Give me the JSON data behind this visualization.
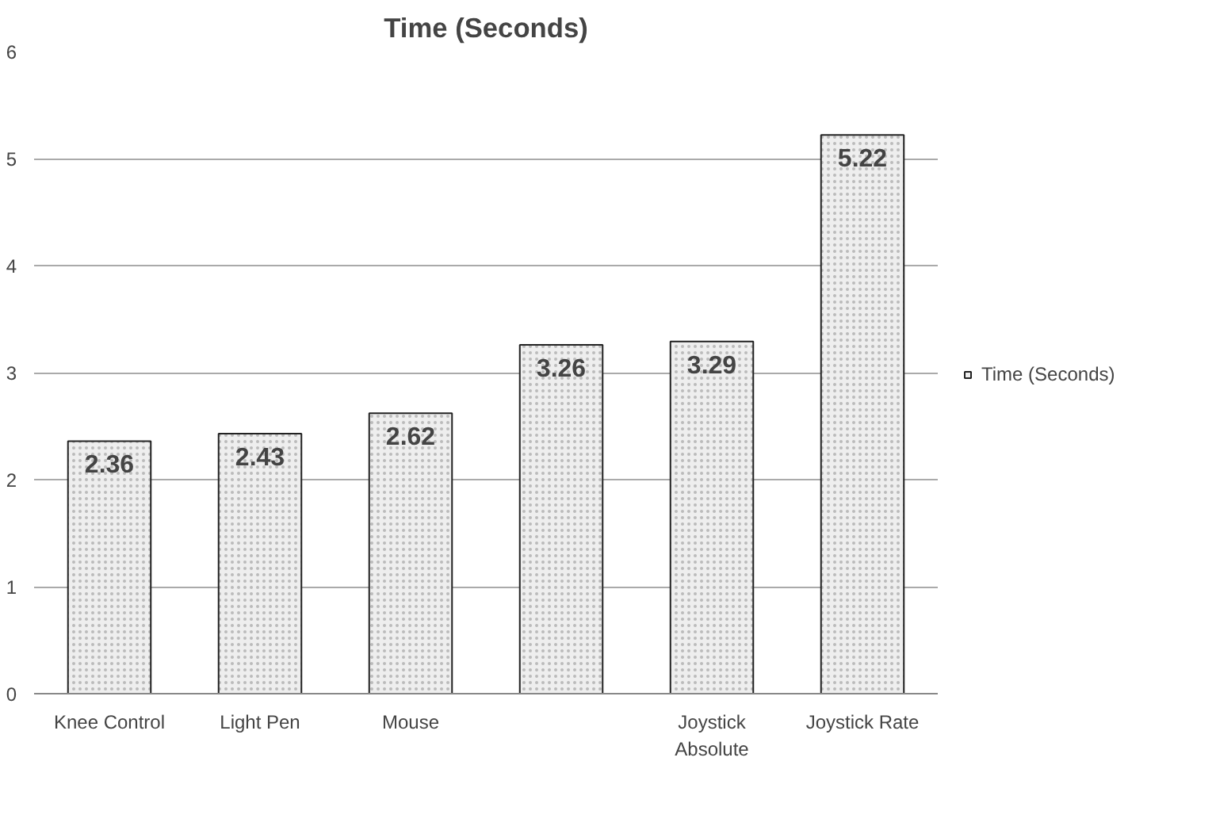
{
  "chart_data": {
    "type": "bar",
    "title": "Time (Seconds)",
    "categories": [
      "Knee Control",
      "Light Pen",
      "Mouse",
      null,
      "Joystick Absolute",
      "Joystick Rate"
    ],
    "series": [
      {
        "name": "Time (Seconds)",
        "color": "#eeeeee",
        "values": [
          2.36,
          2.43,
          2.62,
          3.26,
          3.29,
          5.22
        ]
      }
    ],
    "ylim": [
      0,
      6
    ],
    "yticks": [
      0,
      1,
      2,
      3,
      4,
      5,
      6
    ],
    "grid": "y",
    "legend": "right",
    "data_labels": true
  }
}
